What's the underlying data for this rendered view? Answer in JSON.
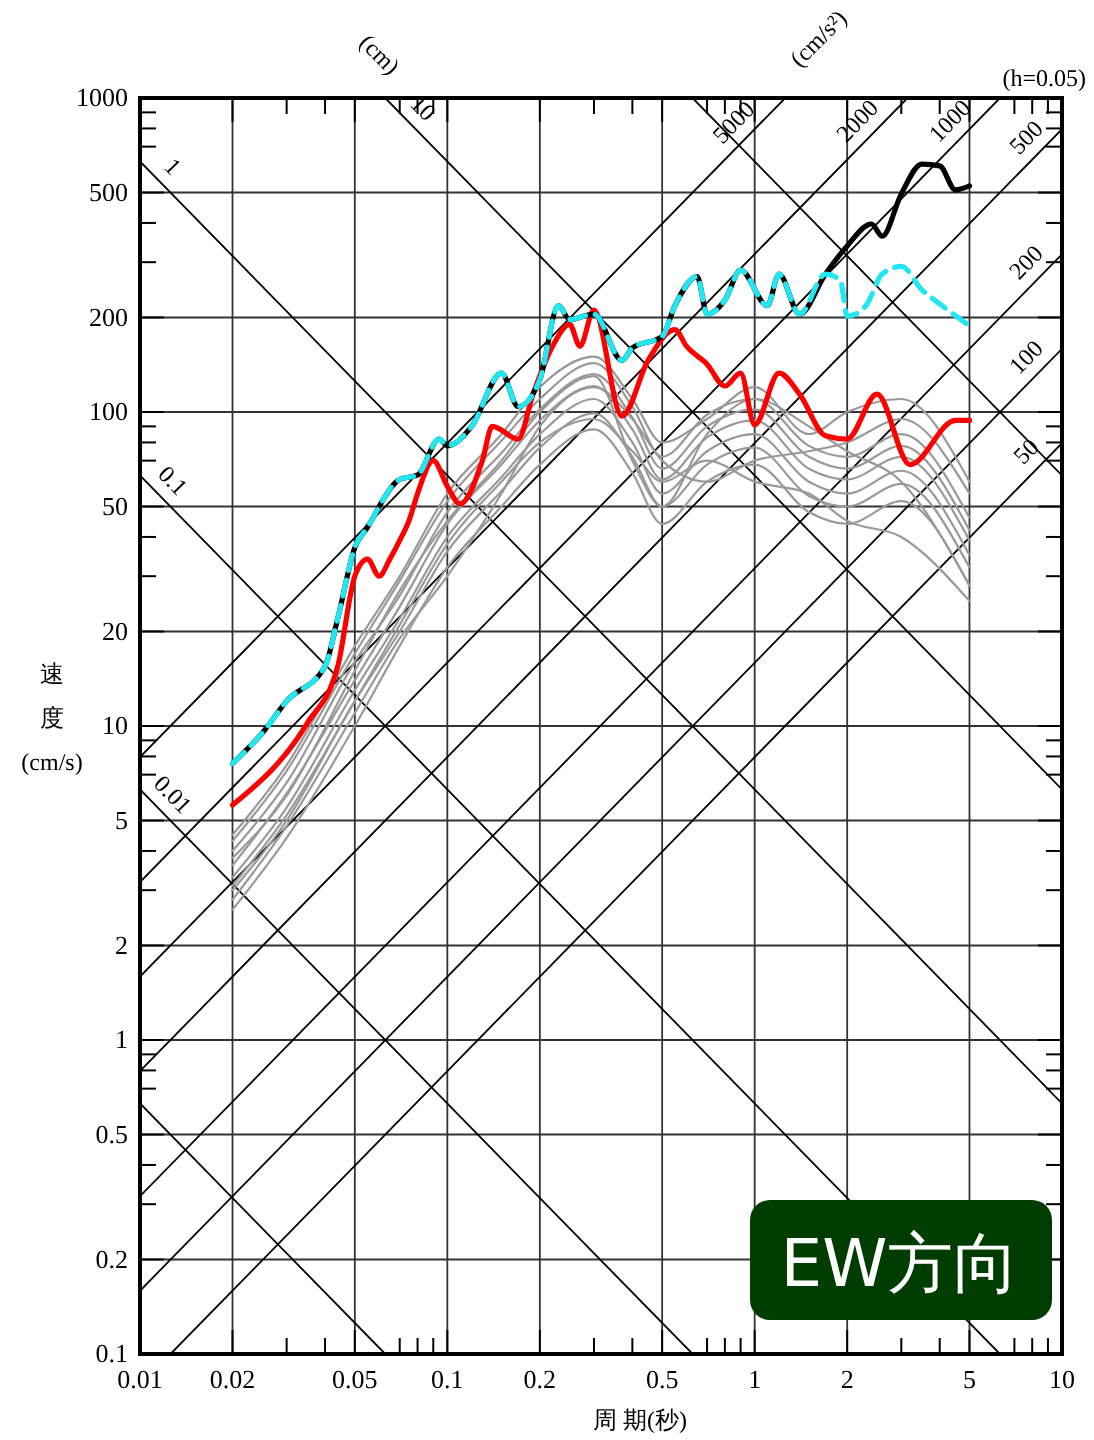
{
  "chart_data": {
    "type": "line",
    "xlabel": "周 期(秒)",
    "ylabel": "速度(cm/s)",
    "xlim": [
      0.01,
      10
    ],
    "ylim": [
      0.1,
      1000
    ],
    "log": "xy",
    "grid": true,
    "xticks": [
      0.01,
      0.02,
      {
        "value": 0.03,
        "label": null
      },
      {
        "value": 0.04,
        "label": null
      },
      0.05,
      {
        "value": 0.07,
        "label": null
      },
      {
        "value": 0.08,
        "label": null
      },
      {
        "value": 0.09,
        "label": null
      },
      0.1,
      0.2,
      {
        "value": 0.3,
        "label": null
      },
      {
        "value": 0.4,
        "label": null
      },
      0.5,
      {
        "value": 0.7,
        "label": null
      },
      {
        "value": 0.8,
        "label": null
      },
      {
        "value": 0.9,
        "label": null
      },
      1,
      2,
      {
        "value": 3,
        "label": null
      },
      {
        "value": 4,
        "label": null
      },
      5,
      {
        "value": 7,
        "label": null
      },
      {
        "value": 8,
        "label": null
      },
      {
        "value": 9,
        "label": null
      },
      10
    ],
    "yticks": [
      0.1,
      0.2,
      {
        "value": 0.3,
        "label": null
      },
      {
        "value": 0.4,
        "label": null
      },
      0.5,
      {
        "value": 0.7,
        "label": null
      },
      {
        "value": 0.8,
        "label": null
      },
      {
        "value": 0.9,
        "label": null
      },
      1,
      2,
      {
        "value": 3,
        "label": null
      },
      {
        "value": 4,
        "label": null
      },
      5,
      {
        "value": 7,
        "label": null
      },
      {
        "value": 8,
        "label": null
      },
      {
        "value": 9,
        "label": null
      },
      10,
      20,
      {
        "value": 30,
        "label": null
      },
      {
        "value": 40,
        "label": null
      },
      50,
      {
        "value": 70,
        "label": null
      },
      {
        "value": 80,
        "label": null
      },
      {
        "value": 90,
        "label": null
      },
      100,
      200,
      {
        "value": 300,
        "label": null
      },
      {
        "value": 400,
        "label": null
      },
      500,
      {
        "value": 700,
        "label": null
      },
      {
        "value": 800,
        "label": null
      },
      {
        "value": 900,
        "label": null
      },
      1000
    ],
    "annotations": [
      "(cm)",
      "(cm/s²)",
      "(h=0.05)",
      "EW方向",
      {
        "text": "0.01",
        "x": 0.0115,
        "y": 5.46
      },
      {
        "text": "0.1",
        "x": 0.0115,
        "y": 54.6
      },
      {
        "text": "1",
        "x": 0.0115,
        "y": 546
      },
      {
        "text": "10",
        "x": 0.075,
        "y": 838
      },
      {
        "text": "50",
        "x": 8.5,
        "y": 67.6
      },
      {
        "text": "100",
        "x": 8.5,
        "y": 135
      },
      {
        "text": "200",
        "x": 8.5,
        "y": 270.6
      },
      {
        "text": "500",
        "x": 8.5,
        "y": 676
      },
      {
        "text": "1000",
        "x": 4.8,
        "y": 764
      },
      {
        "text": "2000",
        "x": 2.4,
        "y": 764
      },
      {
        "text": "5000",
        "x": 0.95,
        "y": 756
      }
    ],
    "x": [
      0.02,
      0.03,
      0.05,
      0.07,
      0.1,
      0.15,
      0.2,
      0.3,
      0.4,
      0.5,
      0.7,
      1,
      1.5,
      2,
      3,
      5
    ],
    "series": [
      {
        "color": "#000000",
        "x": [
          0.01,
          0.0628
        ],
        "values": [
          0.628,
          0.1
        ]
      },
      {
        "color": "#000000",
        "x": [
          0.01,
          0.628
        ],
        "values": [
          6.28,
          0.1
        ]
      },
      {
        "color": "#000000",
        "x": [
          0.01,
          6.28
        ],
        "values": [
          62.8,
          0.1
        ]
      },
      {
        "color": "#000000",
        "x": [
          0.01,
          10
        ],
        "values": [
          628,
          0.628
        ]
      },
      {
        "color": "#000000",
        "x": [
          0.0628,
          10
        ],
        "values": [
          1000,
          6.28
        ]
      },
      {
        "color": "#000000",
        "x": [
          0.628,
          10
        ],
        "values": [
          1000,
          62.8
        ]
      },
      {
        "color": "#000000",
        "x": [
          0.01257,
          10
        ],
        "values": [
          0.1,
          79.6
        ]
      },
      {
        "color": "#000000",
        "x": [
          0.01,
          10
        ],
        "values": [
          0.159,
          159
        ]
      },
      {
        "color": "#000000",
        "x": [
          0.01,
          10
        ],
        "values": [
          0.318,
          318
        ]
      },
      {
        "color": "#000000",
        "x": [
          0.01,
          10
        ],
        "values": [
          0.796,
          796
        ]
      },
      {
        "color": "#000000",
        "x": [
          0.01,
          6.283
        ],
        "values": [
          1.592,
          1000
        ]
      },
      {
        "color": "#000000",
        "x": [
          0.01,
          3.142
        ],
        "values": [
          3.183,
          1000
        ]
      },
      {
        "color": "#000000",
        "x": [
          0.01,
          1.257
        ],
        "values": [
          7.958,
          1000
        ]
      },
      {
        "color": "#999999",
        "values": [
          2.6,
          4.4,
          10,
          18,
          32,
          50,
          68,
          88,
          64,
          44,
          60,
          68,
          48,
          44,
          52,
          28
        ]
      },
      {
        "color": "#999999",
        "values": [
          3.0,
          5.0,
          12,
          20,
          36,
          56,
          77,
          99,
          72,
          50,
          68,
          77,
          54,
          50,
          59,
          32
        ]
      },
      {
        "color": "#999999",
        "values": [
          3.3,
          5.5,
          13,
          22,
          40,
          62,
          85,
          110,
          80,
          55,
          75,
          85,
          60,
          55,
          65,
          35
        ]
      },
      {
        "color": "#999999",
        "values": [
          3.6,
          6.1,
          14,
          24,
          44,
          68,
          94,
          121,
          88,
          61,
          83,
          94,
          66,
          61,
          72,
          39
        ]
      },
      {
        "color": "#999999",
        "values": [
          4.0,
          6.6,
          16,
          26,
          48,
          74,
          102,
          132,
          96,
          66,
          90,
          102,
          72,
          66,
          78,
          42
        ]
      },
      {
        "color": "#999999",
        "values": [
          4.3,
          7.2,
          17,
          29,
          52,
          81,
          110,
          143,
          104,
          72,
          98,
          110,
          78,
          72,
          85,
          46
        ]
      },
      {
        "color": "#999999",
        "values": [
          2.8,
          4.8,
          11,
          19,
          30,
          55,
          90,
          120,
          95,
          70,
          60,
          70,
          75,
          80,
          95,
          55
        ]
      },
      {
        "color": "#999999",
        "values": [
          3.8,
          6.0,
          15,
          27,
          45,
          70,
          100,
          130,
          70,
          50,
          85,
          110,
          90,
          75,
          60,
          28
        ]
      },
      {
        "color": "#999999",
        "values": [
          3.1,
          5.2,
          12,
          21,
          38,
          60,
          80,
          95,
          75,
          60,
          70,
          60,
          55,
          45,
          40,
          25
        ]
      },
      {
        "color": "#999999",
        "values": [
          4.5,
          7.5,
          18,
          30,
          55,
          85,
          120,
          150,
          110,
          80,
          95,
          120,
          85,
          100,
          110,
          60
        ]
      },
      {
        "color": "#ff0000",
        "x": [
          0.02,
          0.035,
          0.044,
          0.05,
          0.055,
          0.06,
          0.065,
          0.07,
          0.075,
          0.08,
          0.09,
          0.1,
          0.11,
          0.13,
          0.14,
          0.17,
          0.19,
          0.22,
          0.25,
          0.27,
          0.3,
          0.37,
          0.45,
          0.55,
          0.6,
          0.7,
          0.8,
          0.9,
          1.0,
          1.2,
          1.4,
          1.7,
          2.0,
          2.5,
          3.2,
          4.5,
          5.0
        ],
        "values": [
          5.6,
          10.2,
          15.5,
          30,
          34,
          30,
          34,
          39,
          45,
          55,
          70,
          58,
          51,
          70,
          90,
          82,
          114,
          162,
          190,
          162,
          211,
          97,
          146,
          183,
          162,
          142,
          121,
          133,
          91,
          133,
          114,
          84,
          82,
          114,
          68,
          94,
          94
        ]
      },
      {
        "color": "#000000",
        "x": [
          0.02,
          0.025,
          0.03,
          0.04,
          0.044,
          0.05,
          0.055,
          0.058,
          0.06,
          0.07,
          0.08,
          0.094,
          0.1,
          0.12,
          0.15,
          0.17,
          0.2,
          0.23,
          0.25,
          0.3,
          0.37,
          0.4,
          0.5,
          0.55,
          0.65,
          0.7,
          0.8,
          0.9,
          1.1,
          1.2,
          1.4,
          1.7,
          2.0,
          2.4,
          2.6,
          3.0,
          3.5,
          4.0,
          4.5,
          5.0
        ],
        "values": [
          7.6,
          9.5,
          12,
          15.5,
          22,
          37,
          43,
          47,
          50,
          61,
          63,
          82,
          78,
          90,
          133,
          104,
          127,
          218,
          197,
          205,
          146,
          160,
          174,
          218,
          270,
          205,
          227,
          283,
          218,
          275,
          205,
          275,
          338,
          397,
          363,
          495,
          616,
          608,
          510,
          525
        ]
      },
      {
        "color": "#22e6f0",
        "line_style": "dashed",
        "x": [
          0.02,
          0.025,
          0.03,
          0.04,
          0.044,
          0.05,
          0.055,
          0.058,
          0.06,
          0.07,
          0.08,
          0.094,
          0.1,
          0.12,
          0.15,
          0.17,
          0.2,
          0.23,
          0.25,
          0.3,
          0.37,
          0.4,
          0.5,
          0.55,
          0.65,
          0.7,
          0.8,
          0.9,
          1.1,
          1.2,
          1.4,
          1.7,
          1.9,
          2.0,
          2.3,
          2.6,
          3.0,
          3.5,
          4.0,
          5.0
        ],
        "values": [
          7.6,
          9.5,
          12,
          15.5,
          22,
          37,
          43,
          47,
          50,
          61,
          63,
          82,
          78,
          90,
          133,
          104,
          127,
          218,
          197,
          205,
          146,
          160,
          174,
          218,
          270,
          205,
          227,
          283,
          218,
          275,
          205,
          275,
          263,
          202,
          218,
          275,
          291,
          245,
          221,
          188
        ]
      }
    ]
  }
}
